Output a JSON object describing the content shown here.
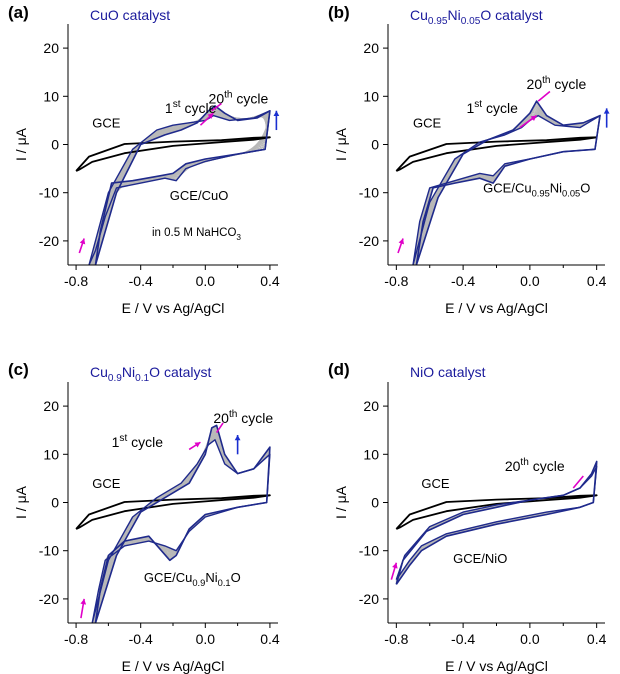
{
  "figure": {
    "colors": {
      "cycle1": "#1f2a8c",
      "intermediate": "#b8b8b8",
      "gce": "#000000",
      "arrow_pink": "#e000c8",
      "arrow_blue": "#1a2fd0",
      "title": "#1a1a9c"
    }
  },
  "chart_data": [
    {
      "type": "line",
      "panel_label": "(a)",
      "title": "CuO catalyst",
      "xlabel": "E / V vs Ag/AgCl",
      "ylabel": "I / μA",
      "xlim": [
        -0.85,
        0.45
      ],
      "ylim": [
        -25,
        25
      ],
      "xticks": [
        "-0.8",
        "-0.4",
        "0.0",
        "0.4"
      ],
      "yticks": [
        "-20",
        "-10",
        "0",
        "10",
        "20"
      ],
      "annotations": {
        "gce": "GCE",
        "electrode": "GCE/CuO",
        "first_cycle": "1st cycle",
        "last_cycle": "20th cycle",
        "electrolyte": "in 0.5 M NaHCO3"
      },
      "series": [
        {
          "role": "gce",
          "x": [
            -0.8,
            -0.78,
            -0.7,
            -0.5,
            -0.2,
            0.1,
            0.3,
            0.4,
            0.3,
            0.1,
            -0.2,
            -0.5,
            -0.72,
            -0.8
          ],
          "y": [
            -5.5,
            -5.2,
            -3.6,
            -1.8,
            -0.3,
            0.5,
            1.0,
            1.5,
            1.4,
            0.9,
            0.6,
            0.1,
            -2.5,
            -5.5
          ]
        },
        {
          "role": "cycle1",
          "x": [
            -0.72,
            -0.6,
            -0.45,
            -0.3,
            -0.2,
            -0.1,
            0.0,
            0.05,
            0.15,
            0.3,
            0.4,
            0.37,
            0.2,
            0.0,
            -0.12,
            -0.18,
            -0.25,
            -0.4,
            -0.55,
            -0.62,
            -0.68,
            -0.72
          ],
          "y": [
            -25,
            -10,
            -1,
            3,
            4,
            4.5,
            5,
            6,
            5,
            5.5,
            7,
            -1,
            -2,
            -3.5,
            -5,
            -7.5,
            -7,
            -8,
            -9,
            -15,
            -22,
            -25
          ]
        },
        {
          "role": "last",
          "x": [
            -0.68,
            -0.55,
            -0.4,
            -0.25,
            -0.15,
            -0.05,
            0.02,
            0.06,
            0.12,
            0.2,
            0.32,
            0.4,
            0.37,
            0.2,
            0.0,
            -0.12,
            -0.2,
            -0.28,
            -0.45,
            -0.58,
            -0.65,
            -0.68
          ],
          "y": [
            -25,
            -10,
            0,
            2,
            3,
            4.5,
            7,
            8,
            6.5,
            5,
            5.5,
            7,
            -1,
            -2,
            -3,
            -4,
            -6,
            -6.5,
            -7.5,
            -8,
            -18,
            -25
          ]
        }
      ]
    },
    {
      "type": "line",
      "panel_label": "(b)",
      "title": "Cu0.95Ni0.05O catalyst",
      "xlabel": "E / V vs Ag/AgCl",
      "ylabel": "I / μA",
      "xlim": [
        -0.85,
        0.45
      ],
      "ylim": [
        -25,
        25
      ],
      "xticks": [
        "-0.8",
        "-0.4",
        "0.0",
        "0.4"
      ],
      "yticks": [
        "-20",
        "-10",
        "0",
        "10",
        "20"
      ],
      "annotations": {
        "gce": "GCE",
        "electrode": "GCE/Cu0.95Ni0.05O",
        "first_cycle": "1st cycle",
        "last_cycle": "20th cycle"
      },
      "series": [
        {
          "role": "gce",
          "x": [
            -0.8,
            -0.78,
            -0.7,
            -0.5,
            -0.2,
            0.1,
            0.3,
            0.4,
            0.3,
            0.1,
            -0.2,
            -0.5,
            -0.72,
            -0.8
          ],
          "y": [
            -5.5,
            -5.2,
            -3.6,
            -1.8,
            -0.3,
            0.5,
            1.0,
            1.5,
            1.4,
            0.9,
            0.6,
            0.1,
            -2.5,
            -5.5
          ]
        },
        {
          "role": "cycle1",
          "x": [
            -0.7,
            -0.6,
            -0.45,
            -0.3,
            -0.15,
            -0.05,
            0.0,
            0.05,
            0.15,
            0.3,
            0.42,
            0.39,
            0.2,
            0.0,
            -0.15,
            -0.22,
            -0.3,
            -0.45,
            -0.6,
            -0.66,
            -0.7
          ],
          "y": [
            -25,
            -12,
            -3,
            0.5,
            2,
            3.5,
            5,
            6,
            4,
            3.5,
            6,
            -1,
            -1.5,
            -3,
            -4,
            -6.5,
            -6,
            -7.5,
            -9,
            -16,
            -25
          ]
        },
        {
          "role": "last",
          "x": [
            -0.68,
            -0.55,
            -0.4,
            -0.25,
            -0.1,
            0.0,
            0.04,
            0.1,
            0.2,
            0.32,
            0.42,
            0.39,
            0.2,
            0.0,
            -0.15,
            -0.22,
            -0.3,
            -0.45,
            -0.58,
            -0.64,
            -0.68
          ],
          "y": [
            -25,
            -11,
            -2,
            1,
            3,
            6.5,
            9,
            6,
            4,
            4.5,
            6,
            -1,
            -1.5,
            -3,
            -4.5,
            -8,
            -7,
            -8,
            -9,
            -16,
            -25
          ]
        }
      ]
    },
    {
      "type": "line",
      "panel_label": "(c)",
      "title": "Cu0.9Ni0.1O catalyst",
      "xlabel": "E / V vs Ag/AgCl",
      "ylabel": "I / μA",
      "xlim": [
        -0.85,
        0.45
      ],
      "ylim": [
        -25,
        25
      ],
      "xticks": [
        "-0.8",
        "-0.4",
        "0.0",
        "0.4"
      ],
      "yticks": [
        "-20",
        "-10",
        "0",
        "10",
        "20"
      ],
      "annotations": {
        "gce": "GCE",
        "electrode": "GCE/Cu0.9Ni0.1O",
        "first_cycle": "1st cycle",
        "last_cycle": "20th cycle"
      },
      "series": [
        {
          "role": "gce",
          "x": [
            -0.8,
            -0.78,
            -0.7,
            -0.5,
            -0.2,
            0.1,
            0.3,
            0.4,
            0.3,
            0.1,
            -0.2,
            -0.5,
            -0.72,
            -0.8
          ],
          "y": [
            -5.5,
            -5.2,
            -3.6,
            -1.8,
            -0.3,
            0.5,
            1.0,
            1.5,
            1.4,
            0.9,
            0.6,
            0.1,
            -2.5,
            -5.5
          ]
        },
        {
          "role": "cycle1",
          "x": [
            -0.7,
            -0.6,
            -0.45,
            -0.3,
            -0.15,
            -0.05,
            0.02,
            0.06,
            0.12,
            0.2,
            0.3,
            0.4,
            0.38,
            0.2,
            0.0,
            -0.1,
            -0.18,
            -0.25,
            -0.35,
            -0.5,
            -0.62,
            -0.66,
            -0.7
          ],
          "y": [
            -25,
            -12,
            -3,
            1,
            4,
            8,
            12,
            13,
            8,
            6,
            7,
            10,
            0,
            -1,
            -3,
            -6,
            -10,
            -9,
            -8,
            -9,
            -12,
            -18,
            -25
          ]
        },
        {
          "role": "last",
          "x": [
            -0.68,
            -0.55,
            -0.4,
            -0.25,
            -0.1,
            0.0,
            0.04,
            0.07,
            0.12,
            0.2,
            0.3,
            0.4,
            0.38,
            0.2,
            0.0,
            -0.1,
            -0.18,
            -0.22,
            -0.35,
            -0.5,
            -0.6,
            -0.65,
            -0.68
          ],
          "y": [
            -25,
            -11,
            -2,
            1,
            4,
            10,
            15.5,
            16,
            10,
            6,
            7,
            11.5,
            0,
            -1,
            -2.5,
            -5.5,
            -11,
            -12,
            -7,
            -8,
            -11,
            -18,
            -25
          ]
        }
      ]
    },
    {
      "type": "line",
      "panel_label": "(d)",
      "title": "NiO catalyst",
      "xlabel": "E / V vs Ag/AgCl",
      "ylabel": "I / μA",
      "xlim": [
        -0.85,
        0.45
      ],
      "ylim": [
        -25,
        25
      ],
      "xticks": [
        "-0.8",
        "-0.4",
        "0.0",
        "0.4"
      ],
      "yticks": [
        "-20",
        "-10",
        "0",
        "10",
        "20"
      ],
      "annotations": {
        "gce": "GCE",
        "electrode": "GCE/NiO",
        "last_cycle": "20th cycle"
      },
      "series": [
        {
          "role": "gce",
          "x": [
            -0.8,
            -0.78,
            -0.7,
            -0.5,
            -0.2,
            0.1,
            0.3,
            0.4,
            0.3,
            0.1,
            -0.2,
            -0.5,
            -0.72,
            -0.8
          ],
          "y": [
            -5.5,
            -5.2,
            -3.6,
            -1.8,
            -0.3,
            0.5,
            1.0,
            1.5,
            1.4,
            0.9,
            0.6,
            0.1,
            -2.5,
            -5.5
          ]
        },
        {
          "role": "cycle1",
          "x": [
            -0.8,
            -0.75,
            -0.6,
            -0.4,
            -0.2,
            0.0,
            0.2,
            0.3,
            0.37,
            0.4,
            0.38,
            0.3,
            0.1,
            -0.2,
            -0.5,
            -0.65,
            -0.72,
            -0.78,
            -0.8
          ],
          "y": [
            -16,
            -11,
            -5,
            -2,
            -0.5,
            0.5,
            1.5,
            3,
            5.5,
            7.5,
            0,
            -1,
            -2,
            -4,
            -6.5,
            -9,
            -12,
            -15,
            -16
          ]
        },
        {
          "role": "last",
          "x": [
            -0.8,
            -0.76,
            -0.62,
            -0.4,
            -0.2,
            0.0,
            0.2,
            0.3,
            0.37,
            0.4,
            0.38,
            0.3,
            0.1,
            -0.2,
            -0.5,
            -0.65,
            -0.72,
            -0.78,
            -0.8
          ],
          "y": [
            -17,
            -12,
            -6,
            -2.5,
            -1,
            0.5,
            1.5,
            3,
            6,
            8.5,
            0,
            -1,
            -2.5,
            -4.5,
            -7,
            -10,
            -13,
            -16,
            -17
          ]
        }
      ]
    }
  ]
}
